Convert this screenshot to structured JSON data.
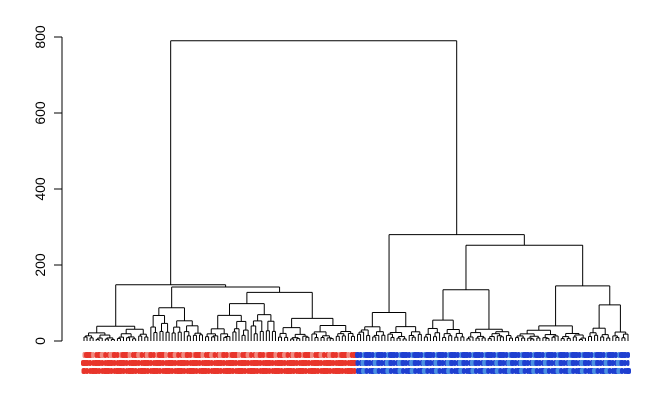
{
  "chart_data": {
    "type": "dendrogram",
    "orientation": "vertical",
    "ylim": [
      0,
      800
    ],
    "yticks": [
      0,
      200,
      400,
      600,
      800
    ],
    "title": "",
    "xlabel": "",
    "ylabel": "",
    "grid": false,
    "leaf_count": 180,
    "merges": [
      {
        "id": "root",
        "height": 790,
        "children": [
          "red_cluster",
          "blue_cluster"
        ]
      },
      {
        "id": "red_cluster",
        "height": 148,
        "children": [
          "red_a",
          "red_b"
        ]
      },
      {
        "id": "red_b",
        "height": 142,
        "children": [
          "red_b1",
          "red_b2"
        ]
      },
      {
        "id": "red_b2",
        "height": 128,
        "children": [
          "red_b2a",
          "red_b2b"
        ]
      },
      {
        "id": "blue_cluster",
        "height": 280,
        "children": [
          "blue_a",
          "blue_b"
        ]
      },
      {
        "id": "blue_b",
        "height": 252,
        "children": [
          "blue_b1",
          "blue_b2"
        ]
      },
      {
        "id": "blue_b2",
        "height": 145,
        "children": [
          "blue_b2a",
          "blue_b2b"
        ]
      },
      {
        "id": "blue_b1",
        "height": 135,
        "children": [
          "blue_b1a",
          "blue_b1b"
        ]
      },
      {
        "id": "blue_b2b",
        "height": 95,
        "children": [
          "blue_b2b1",
          "blue_b2b2"
        ]
      },
      {
        "id": "blue_a",
        "height": 75,
        "children": [
          "blue_a1",
          "blue_a2"
        ]
      }
    ],
    "leaf_colors": {
      "red": "#e8352b",
      "light_red": "#f08a80",
      "blue": "#1f3fd0",
      "light_blue": "#4a90e2"
    }
  }
}
